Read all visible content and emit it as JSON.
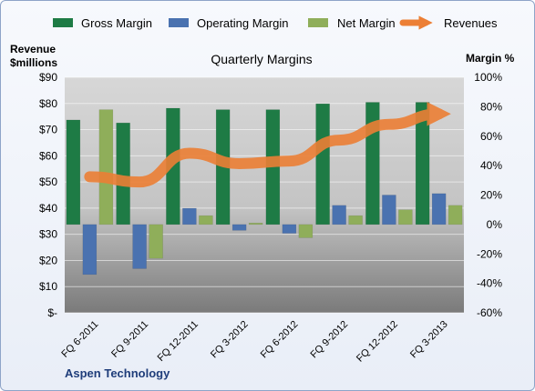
{
  "chart_data": {
    "type": "bar",
    "title": "Quarterly Margins",
    "company": "Aspen Technology",
    "left_axis_label": [
      "Revenue",
      "$millions"
    ],
    "right_axis_label": "Margin %",
    "categories": [
      "FQ 6-2011",
      "FQ 9-2011",
      "FQ 12-2011",
      "FQ 3-2012",
      "FQ 6-2012",
      "FQ 9-2012",
      "FQ 12-2012",
      "FQ 3-2013"
    ],
    "series": [
      {
        "name": "Gross Margin",
        "axis": "right",
        "color": "#1e7b45",
        "values": [
          71,
          69,
          79,
          78,
          78,
          82,
          83,
          83
        ]
      },
      {
        "name": "Operating Margin",
        "axis": "right",
        "color": "#4a72b0",
        "values": [
          -34,
          -30,
          11,
          -4,
          -6,
          13,
          20,
          21
        ]
      },
      {
        "name": "Net Margin",
        "axis": "right",
        "color": "#8fae5a",
        "values": [
          78,
          -23,
          6,
          1,
          -9,
          6,
          10,
          13
        ]
      }
    ],
    "line_series": {
      "name": "Revenues",
      "axis": "left",
      "color": "#ec7f35",
      "values": [
        52,
        50,
        61,
        57,
        58,
        66,
        72,
        76
      ]
    },
    "legend": [
      "Gross Margin",
      "Operating Margin",
      "Net Margin",
      "Revenues"
    ],
    "legend_position": "top",
    "left_axis": {
      "min": 0,
      "max": 90,
      "step": 10,
      "ticks": [
        "$-",
        "$10",
        "$20",
        "$30",
        "$40",
        "$50",
        "$60",
        "$70",
        "$80",
        "$90"
      ]
    },
    "right_axis": {
      "min": -60,
      "max": 100,
      "step": 20,
      "ticks": [
        "-60%",
        "-40%",
        "-20%",
        "0%",
        "20%",
        "40%",
        "60%",
        "80%",
        "100%"
      ]
    },
    "grid": true
  }
}
